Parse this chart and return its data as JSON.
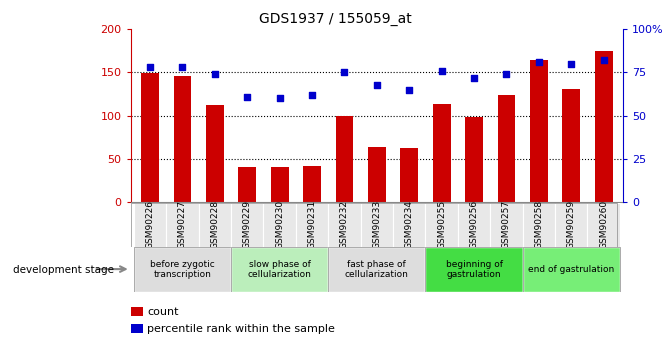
{
  "title": "GDS1937 / 155059_at",
  "samples": [
    "GSM90226",
    "GSM90227",
    "GSM90228",
    "GSM90229",
    "GSM90230",
    "GSM90231",
    "GSM90232",
    "GSM90233",
    "GSM90234",
    "GSM90255",
    "GSM90256",
    "GSM90257",
    "GSM90258",
    "GSM90259",
    "GSM90260"
  ],
  "counts": [
    149,
    146,
    112,
    40,
    40,
    42,
    100,
    64,
    62,
    113,
    98,
    124,
    164,
    131,
    175
  ],
  "percentile_ranks": [
    78,
    78,
    74,
    61,
    60,
    62,
    75,
    68,
    65,
    76,
    72,
    74,
    81,
    80,
    82
  ],
  "bar_color": "#cc0000",
  "dot_color": "#0000cc",
  "ylim_left": [
    0,
    200
  ],
  "ylim_right": [
    0,
    100
  ],
  "yticks_left": [
    0,
    50,
    100,
    150,
    200
  ],
  "yticks_right": [
    0,
    25,
    50,
    75,
    100
  ],
  "ytick_labels_right": [
    "0",
    "25",
    "50",
    "75",
    "100%"
  ],
  "grid_values": [
    50,
    100,
    150
  ],
  "stages": [
    {
      "label": "before zygotic\ntranscription",
      "start": 0,
      "end": 3,
      "color": "#dddddd"
    },
    {
      "label": "slow phase of\ncellularization",
      "start": 3,
      "end": 6,
      "color": "#bbeebb"
    },
    {
      "label": "fast phase of\ncellularization",
      "start": 6,
      "end": 9,
      "color": "#dddddd"
    },
    {
      "label": "beginning of\ngastrulation",
      "start": 9,
      "end": 12,
      "color": "#44dd44"
    },
    {
      "label": "end of gastrulation",
      "start": 12,
      "end": 15,
      "color": "#77ee77"
    }
  ],
  "dev_stage_label": "development stage",
  "left_axis_color": "#cc0000",
  "right_axis_color": "#0000cc",
  "cell_bg": "#e8e8e8"
}
